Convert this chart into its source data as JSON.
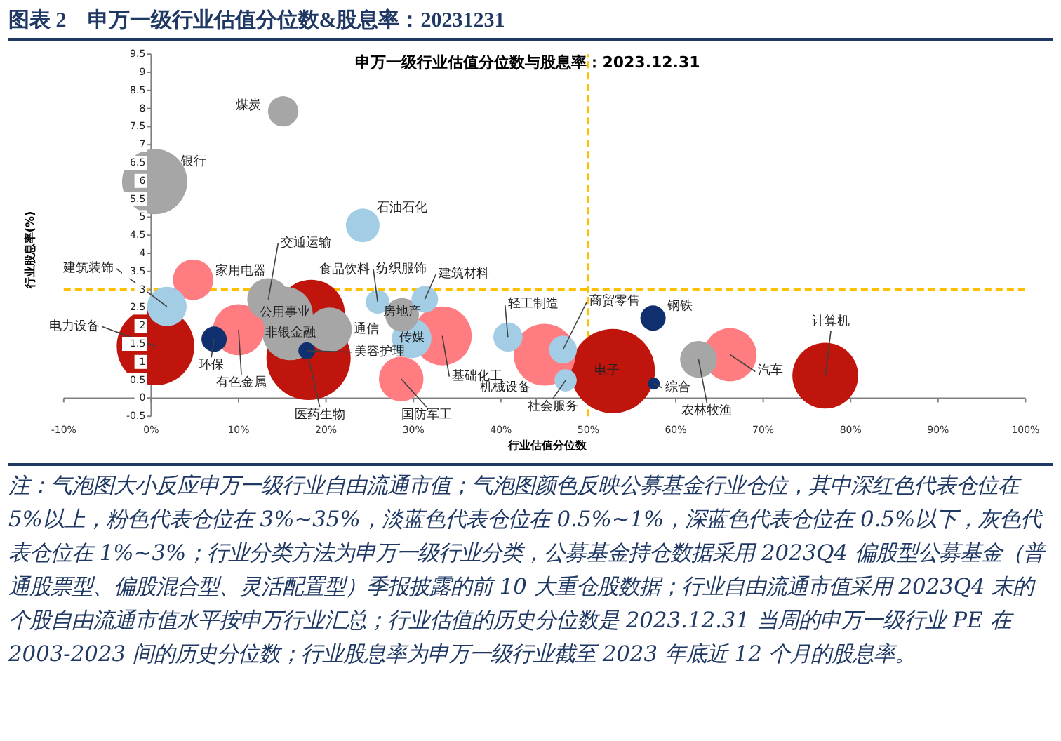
{
  "chart_data": {
    "type": "bubble",
    "title": "图表 2    申万一级行业估值分位数&股息率：20231231",
    "subtitle": "申万一级行业估值分位数与股息率：2023.12.31",
    "xlabel": "行业估值分位数",
    "ylabel": "行业股息率(%)",
    "x": [
      15.1,
      0.4,
      24.2,
      4.8,
      1.8,
      0.5,
      7.2,
      10.0,
      13.4,
      18.3,
      18.0,
      15.3,
      15.9,
      20.4,
      17.8,
      25.9,
      31.3,
      28.7,
      33.3,
      29.8,
      28.6,
      40.8,
      45.0,
      47.1,
      47.4,
      52.8,
      57.4,
      57.5,
      62.6,
      66.2,
      77.1
    ],
    "values": [
      7.92,
      5.98,
      4.77,
      3.27,
      2.53,
      1.43,
      1.63,
      1.89,
      2.73,
      2.34,
      1.11,
      2.31,
      1.82,
      1.89,
      1.31,
      2.66,
      2.73,
      2.3,
      1.72,
      1.65,
      0.53,
      1.69,
      1.2,
      1.34,
      0.49,
      0.75,
      2.21,
      0.4,
      1.07,
      1.2,
      0.62
    ],
    "sizes": [
      0.13,
      0.6,
      0.16,
      0.23,
      0.22,
      0.85,
      0.09,
      0.37,
      0.25,
      0.64,
      1,
      0.44,
      0.44,
      0.28,
      0.04,
      0.08,
      0.1,
      0.16,
      0.49,
      0.22,
      0.28,
      0.12,
      0.54,
      0.11,
      0.07,
      1,
      0.09,
      0.02,
      0.19,
      0.4,
      0.61
    ],
    "colors": [
      "#a6a6a6",
      "#a6a6a6",
      "#a3cde5",
      "#ff7c80",
      "#a3cde5",
      "#c0150c",
      "#0f2f6e",
      "#ff7c80",
      "#a6a6a6",
      "#c0150c",
      "#c0150c",
      "#a6a6a6",
      "#a6a6a6",
      "#a6a6a6",
      "#0f2f6e",
      "#a3cde5",
      "#a3cde5",
      "#a6a6a6",
      "#ff7c80",
      "#a3cde5",
      "#ff7c80",
      "#a3cde5",
      "#ff7c80",
      "#a3cde5",
      "#a3cde5",
      "#c0150c",
      "#0f2f6e",
      "#0f2f6e",
      "#a6a6a6",
      "#ff7c80",
      "#c0150c"
    ],
    "xlim": [
      -10,
      100
    ],
    "xticks": [
      {
        "value": -10,
        "label": "-10%"
      },
      {
        "value": 0,
        "label": "0%"
      },
      {
        "value": 10,
        "label": "10%"
      },
      {
        "value": 20,
        "label": "20%"
      },
      {
        "value": 30,
        "label": "30%"
      },
      {
        "value": 40,
        "label": "40%"
      },
      {
        "value": 50,
        "label": "50%"
      },
      {
        "value": 60,
        "label": "60%"
      },
      {
        "value": 70,
        "label": "70%"
      },
      {
        "value": 80,
        "label": "80%"
      },
      {
        "value": 90,
        "label": "90%"
      },
      {
        "value": 100,
        "label": "100%"
      }
    ],
    "ylim": [
      -0.5,
      9.5
    ],
    "yticks": [
      -0.5,
      0,
      0.5,
      1,
      1.5,
      2,
      2.5,
      3,
      3.5,
      4,
      4.5,
      5,
      5.5,
      6,
      6.5,
      7,
      7.5,
      8,
      8.5,
      9,
      9.5
    ],
    "ref_lines": [
      {
        "axis": "x",
        "value": 50,
        "color": "#ffc000",
        "line_style": "dashed"
      },
      {
        "axis": "y",
        "value": 3,
        "color": "#ffc000",
        "line_style": "dashed"
      }
    ],
    "annotations": [
      {
        "text": "煤炭",
        "x": 15.1,
        "y": 7.92
      },
      {
        "text": "银行",
        "x": 0.4,
        "y": 5.98
      },
      {
        "text": "石油石化",
        "x": 24.2,
        "y": 4.77
      },
      {
        "text": "家用电器",
        "x": 4.8,
        "y": 3.27
      },
      {
        "text": "建筑装饰",
        "x": 1.8,
        "y": 2.53
      },
      {
        "text": "电力设备",
        "x": 0.5,
        "y": 1.43
      },
      {
        "text": "环保",
        "x": 7.2,
        "y": 1.63
      },
      {
        "text": "有色金属",
        "x": 10.0,
        "y": 1.89
      },
      {
        "text": "交通运输",
        "x": 13.4,
        "y": 2.73
      },
      {
        "text": "食品饮料",
        "x": 18.3,
        "y": 2.34
      },
      {
        "text": "医药生物",
        "x": 18.0,
        "y": 1.11
      },
      {
        "text": "公用事业",
        "x": 15.3,
        "y": 2.31
      },
      {
        "text": "非银金融",
        "x": 15.9,
        "y": 1.82
      },
      {
        "text": "通信",
        "x": 20.4,
        "y": 1.89
      },
      {
        "text": "美容护理",
        "x": 17.8,
        "y": 1.31
      },
      {
        "text": "纺织服饰",
        "x": 25.9,
        "y": 2.66
      },
      {
        "text": "建筑材料",
        "x": 31.3,
        "y": 2.73
      },
      {
        "text": "房地产",
        "x": 28.7,
        "y": 2.3
      },
      {
        "text": "基础化工",
        "x": 33.3,
        "y": 1.72
      },
      {
        "text": "传媒",
        "x": 29.8,
        "y": 1.65
      },
      {
        "text": "国防军工",
        "x": 28.6,
        "y": 0.53
      },
      {
        "text": "轻工制造",
        "x": 40.8,
        "y": 1.69
      },
      {
        "text": "机械设备",
        "x": 45.0,
        "y": 1.2
      },
      {
        "text": "商贸零售",
        "x": 47.1,
        "y": 1.34
      },
      {
        "text": "社会服务",
        "x": 47.4,
        "y": 0.49
      },
      {
        "text": "电子",
        "x": 52.8,
        "y": 0.75
      },
      {
        "text": "钢铁",
        "x": 57.4,
        "y": 2.21
      },
      {
        "text": "综合",
        "x": 57.5,
        "y": 0.4
      },
      {
        "text": "农林牧渔",
        "x": 62.6,
        "y": 1.07
      },
      {
        "text": "汽车",
        "x": 66.2,
        "y": 1.2
      },
      {
        "text": "计算机",
        "x": 77.1,
        "y": 0.62
      },
      "注：气泡图大小反应申万一级行业自由流通市值；气泡图颜色反映公募基金行业仓位，其中深红色代表仓位在 5%以上，粉色代表仓位在 3%~35%，淡蓝色代表仓位在 0.5%~1%，深蓝色代表仓位在 0.5%以下，灰色代表仓位在 1%~3%；行业分类方法为申万一级行业分类，公募基金持仓数据采用 2023Q4 偏股型公募基金（普通股票型、偏股混合型、灵活配置型）季报披露的前 10 大重仓股数据；行业自由流通市值采用 2023Q4 末的个股自由流通市值水平按申万行业汇总；行业估值的历史分位数是 2023.12.31 当周的申万一级行业 PE 在 2003-2023 间的历史分位数；行业股息率为申万一级行业截至 2023 年底近 12 个月的股息率。"
    ]
  }
}
